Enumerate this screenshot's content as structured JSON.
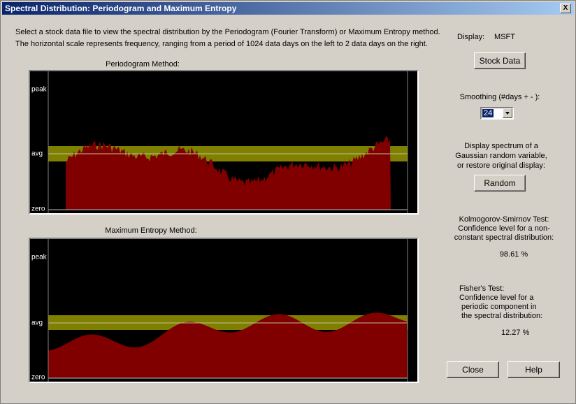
{
  "window": {
    "title": "Spectral Distribution: Periodogram and Maximum Entropy",
    "close": "X"
  },
  "intro": [
    "Select a stock data file to view the spectral distribution by the Periodogram (Fourier Transform) or Maximum Entropy method.",
    "The horizontal scale represents frequency, ranging from a period of 1024 data days on the left to 2 data days on the right."
  ],
  "periodogram": {
    "title": "Periodogram Method:",
    "labels": [
      "peak",
      "avg",
      "zero"
    ]
  },
  "max_entropy": {
    "title": "Maximum Entropy Method:",
    "labels": [
      "peak",
      "avg",
      "zero"
    ]
  },
  "panel": {
    "display_label": "Display:",
    "display_value": "MSFT",
    "stock_button": "Stock Data",
    "smoothing_label": "Smoothing (#days + - ):",
    "smoothing_value": "24",
    "random_text": [
      "Display spectrum of a",
      "Gaussian random variable,",
      "or restore original display:"
    ],
    "random_button": "Random",
    "ks_text": [
      "Kolmogorov-Smirnov Test:",
      "Confidence level for a non-",
      "constant spectral distribution:"
    ],
    "ks_value": "98.61 %",
    "fisher_text": [
      "Fisher's Test:",
      "Confidence level for a",
      "periodic component in",
      "the spectral distribution:"
    ],
    "fisher_value": "12.27 %",
    "close_button": "Close",
    "help_button": "Help"
  }
}
